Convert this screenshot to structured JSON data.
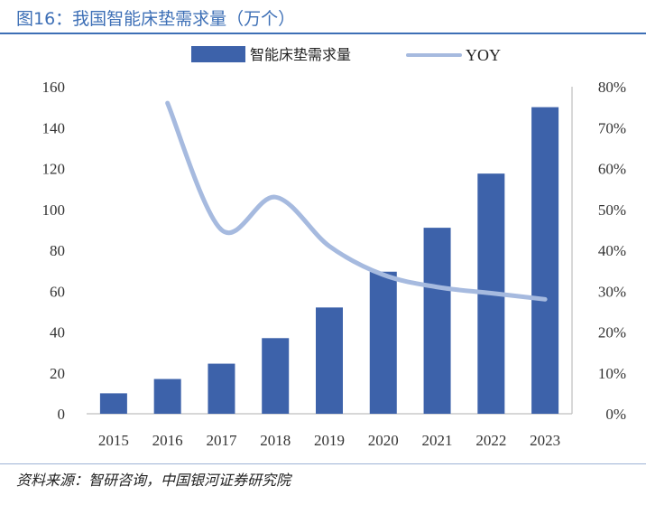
{
  "figure": {
    "title": "图16：我国智能床垫需求量（万个）",
    "source": "资料来源：智研咨询，中国银河证券研究院"
  },
  "colors": {
    "bar": "#3d62aa",
    "line": "#a6badf",
    "title": "#3d6fb6"
  },
  "chart_data": {
    "type": "bar",
    "categories": [
      "2015",
      "2016",
      "2017",
      "2018",
      "2019",
      "2020",
      "2021",
      "2022",
      "2023"
    ],
    "series": [
      {
        "name": "智能床垫需求量",
        "type": "bar",
        "axis": "left",
        "values": [
          10,
          17,
          24.5,
          37,
          52,
          69.5,
          91,
          117.5,
          150
        ]
      },
      {
        "name": "YOY",
        "type": "line",
        "axis": "right",
        "values": [
          null,
          0.76,
          0.45,
          0.53,
          0.41,
          0.34,
          0.31,
          0.295,
          0.28
        ]
      }
    ],
    "ylim": [
      0,
      160
    ],
    "yticks": [
      0,
      20,
      40,
      60,
      80,
      100,
      120,
      140,
      160
    ],
    "y2lim": [
      0,
      0.8
    ],
    "y2ticks": [
      "0%",
      "10%",
      "20%",
      "30%",
      "40%",
      "50%",
      "60%",
      "70%",
      "80%"
    ],
    "legend": "top-center",
    "grid": false
  }
}
